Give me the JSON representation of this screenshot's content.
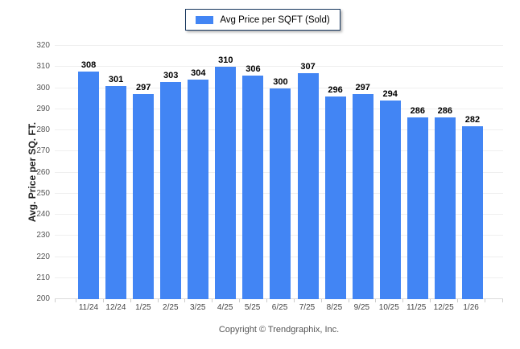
{
  "chart": {
    "legend": {
      "label": "Avg Price per SQFT (Sold)"
    },
    "footer": {
      "copyright": "Copyright © Trendgraphix, Inc."
    },
    "colors": {
      "bar": "#4285f4",
      "grid": "#efefef",
      "baseline": "#dcdcdc",
      "tick": "#cccccc",
      "legend_border": "#17375e"
    }
  },
  "chart_data": {
    "type": "bar",
    "title": "Avg Price per SQFT (Sold)",
    "categories": [
      "11/24",
      "12/24",
      "1/25",
      "2/25",
      "3/25",
      "4/25",
      "5/25",
      "6/25",
      "7/25",
      "8/25",
      "9/25",
      "10/25",
      "11/25",
      "12/25",
      "1/26"
    ],
    "values": [
      308,
      301,
      297,
      303,
      304,
      310,
      306,
      300,
      307,
      296,
      297,
      294,
      286,
      286,
      282
    ],
    "xlabel": "",
    "ylabel": "Avg. Price per SQ. FT.",
    "ylim": [
      200,
      320
    ],
    "yticks": [
      200,
      210,
      220,
      230,
      240,
      250,
      260,
      270,
      280,
      290,
      300,
      310,
      320
    ],
    "grid": true,
    "legend_position": "top-center",
    "value_labels": "above-bars"
  }
}
